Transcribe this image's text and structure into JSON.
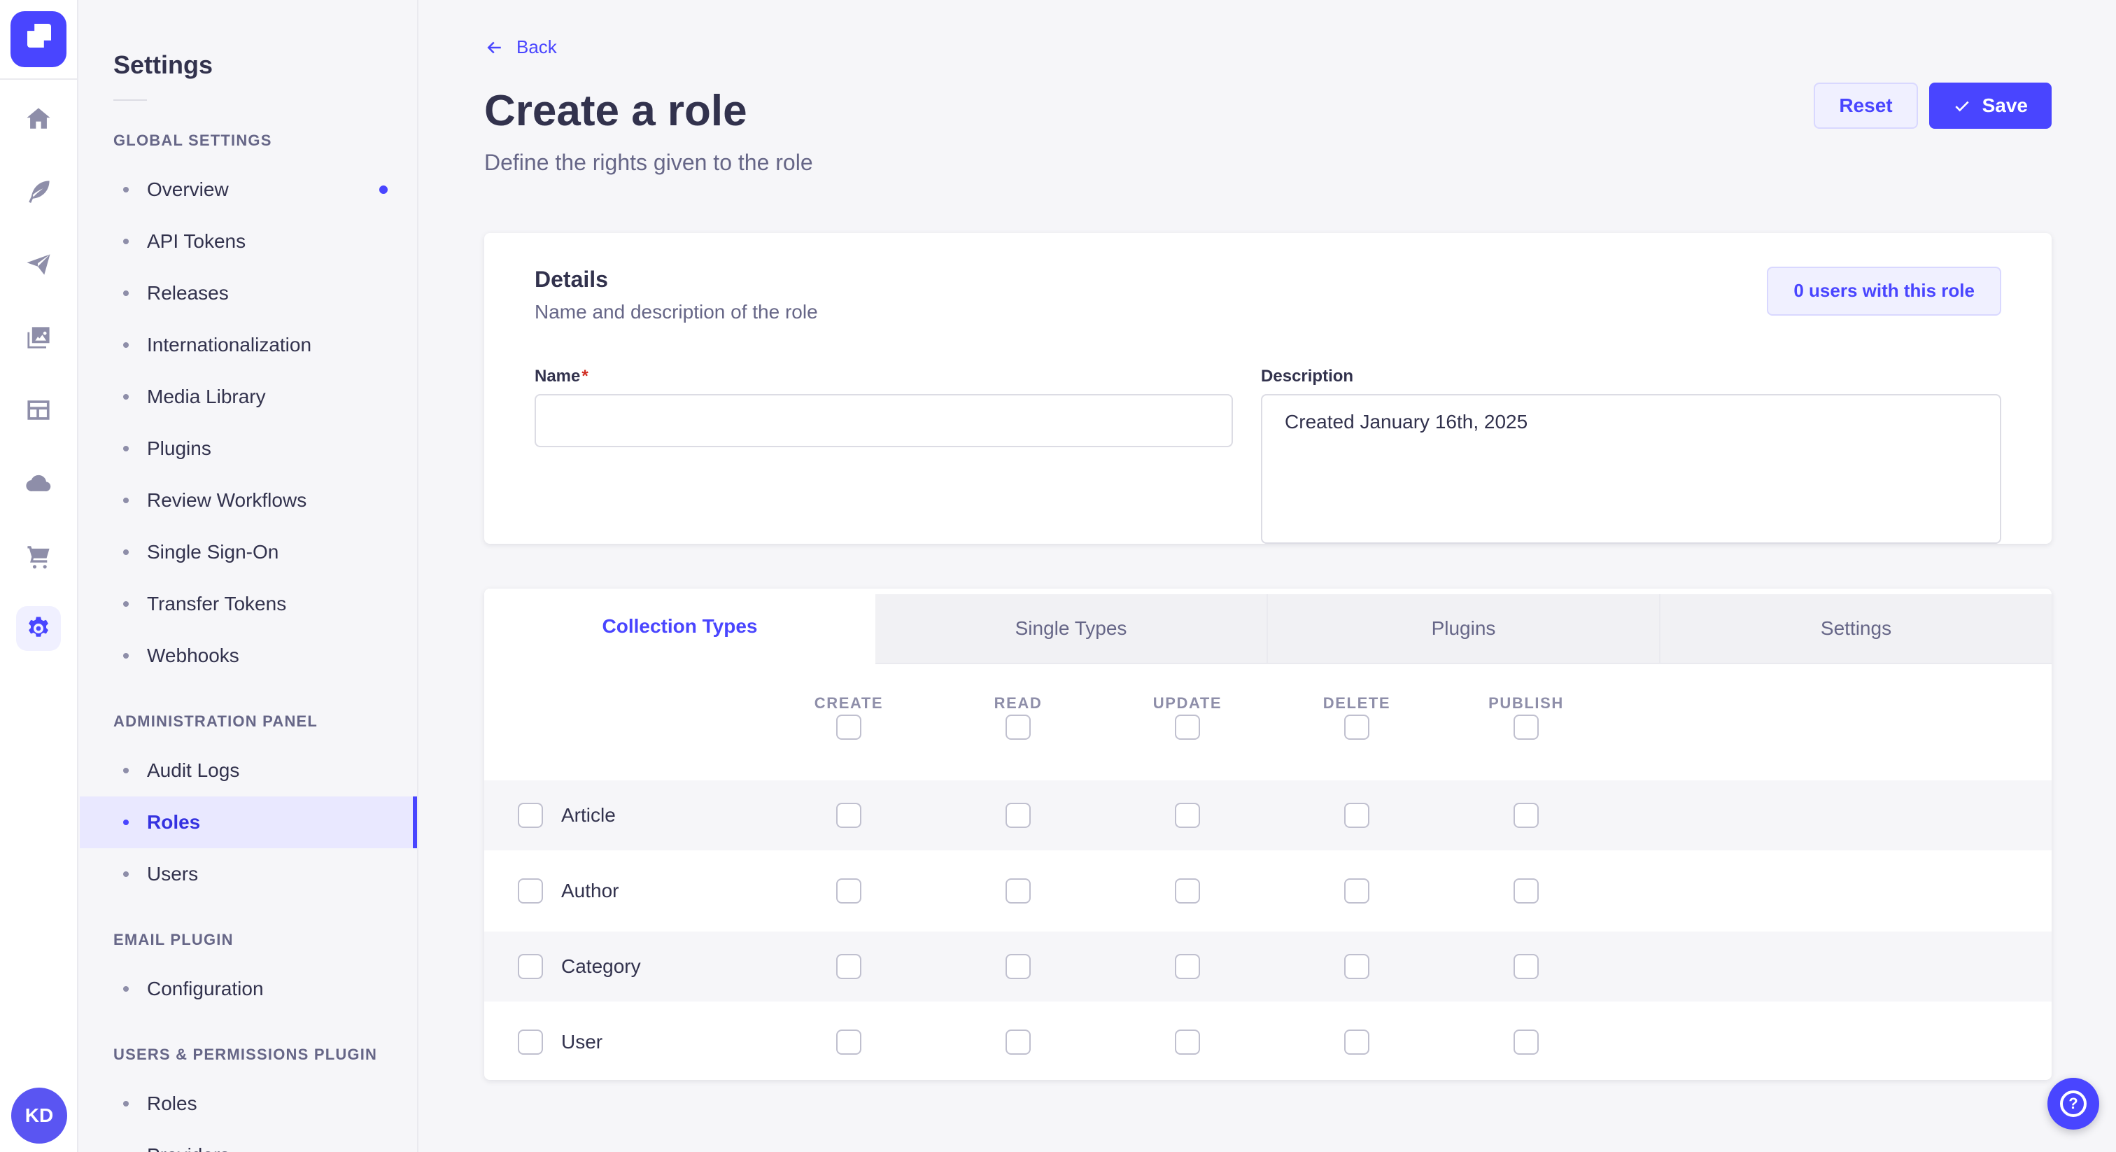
{
  "colors": {
    "primary": "#4945ff",
    "primary_text_active": "#3532e0",
    "lavender_bg": "#f0f0ff",
    "lavender_border": "#d9d8ff",
    "page_bg": "#f6f6f9",
    "card_bg": "#ffffff",
    "border": "#eaeaef",
    "input_border": "#dcdce4",
    "text": "#32324d",
    "text_secondary": "#666687",
    "text_tertiary": "#8e8ea9",
    "checkbox_border": "#c0c0cf",
    "danger": "#d02b20",
    "active_item_bg": "#e9e8ff",
    "avatar_bg": "#5a55f2"
  },
  "rail": {
    "logo": "strapi-logo",
    "icons": [
      "home-icon",
      "feather-icon",
      "paper-plane-icon",
      "media-library-icon",
      "content-manager-icon",
      "cloud-icon",
      "marketplace-cart-icon",
      "settings-gear-icon"
    ],
    "active_icon": "settings-gear-icon",
    "avatar_initials": "KD"
  },
  "sidebar": {
    "title": "Settings",
    "sections": [
      {
        "label": "GLOBAL SETTINGS",
        "items": [
          {
            "label": "Overview",
            "notification": true
          },
          {
            "label": "API Tokens"
          },
          {
            "label": "Releases"
          },
          {
            "label": "Internationalization"
          },
          {
            "label": "Media Library"
          },
          {
            "label": "Plugins"
          },
          {
            "label": "Review Workflows"
          },
          {
            "label": "Single Sign-On"
          },
          {
            "label": "Transfer Tokens"
          },
          {
            "label": "Webhooks"
          }
        ]
      },
      {
        "label": "ADMINISTRATION PANEL",
        "items": [
          {
            "label": "Audit Logs"
          },
          {
            "label": "Roles",
            "active": true
          },
          {
            "label": "Users"
          }
        ]
      },
      {
        "label": "EMAIL PLUGIN",
        "items": [
          {
            "label": "Configuration"
          }
        ]
      },
      {
        "label": "USERS & PERMISSIONS PLUGIN",
        "items": [
          {
            "label": "Roles"
          },
          {
            "label": "Providers"
          }
        ]
      }
    ]
  },
  "header": {
    "back_label": "Back",
    "title": "Create a role",
    "subtitle": "Define the rights given to the role",
    "reset_label": "Reset",
    "save_label": "Save"
  },
  "details": {
    "title": "Details",
    "subtitle": "Name and description of the role",
    "users_button_label": "0 users with this role",
    "name_label": "Name",
    "required_mark": "*",
    "name_value": "",
    "description_label": "Description",
    "description_value": "Created January 16th, 2025"
  },
  "permissions": {
    "tabs": [
      {
        "label": "Collection Types",
        "active": true
      },
      {
        "label": "Single Types"
      },
      {
        "label": "Plugins"
      },
      {
        "label": "Settings"
      }
    ],
    "columns": [
      "Create",
      "Read",
      "Update",
      "Delete",
      "Publish"
    ],
    "rows": [
      {
        "label": "Article",
        "checked": [
          false,
          false,
          false,
          false,
          false
        ]
      },
      {
        "label": "Author",
        "checked": [
          false,
          false,
          false,
          false,
          false
        ]
      },
      {
        "label": "Category",
        "checked": [
          false,
          false,
          false,
          false,
          false
        ]
      },
      {
        "label": "User",
        "checked": [
          false,
          false,
          false,
          false,
          false
        ]
      }
    ],
    "select_all_checked": [
      false,
      false,
      false,
      false,
      false
    ]
  },
  "fab": {
    "name": "help-button"
  }
}
